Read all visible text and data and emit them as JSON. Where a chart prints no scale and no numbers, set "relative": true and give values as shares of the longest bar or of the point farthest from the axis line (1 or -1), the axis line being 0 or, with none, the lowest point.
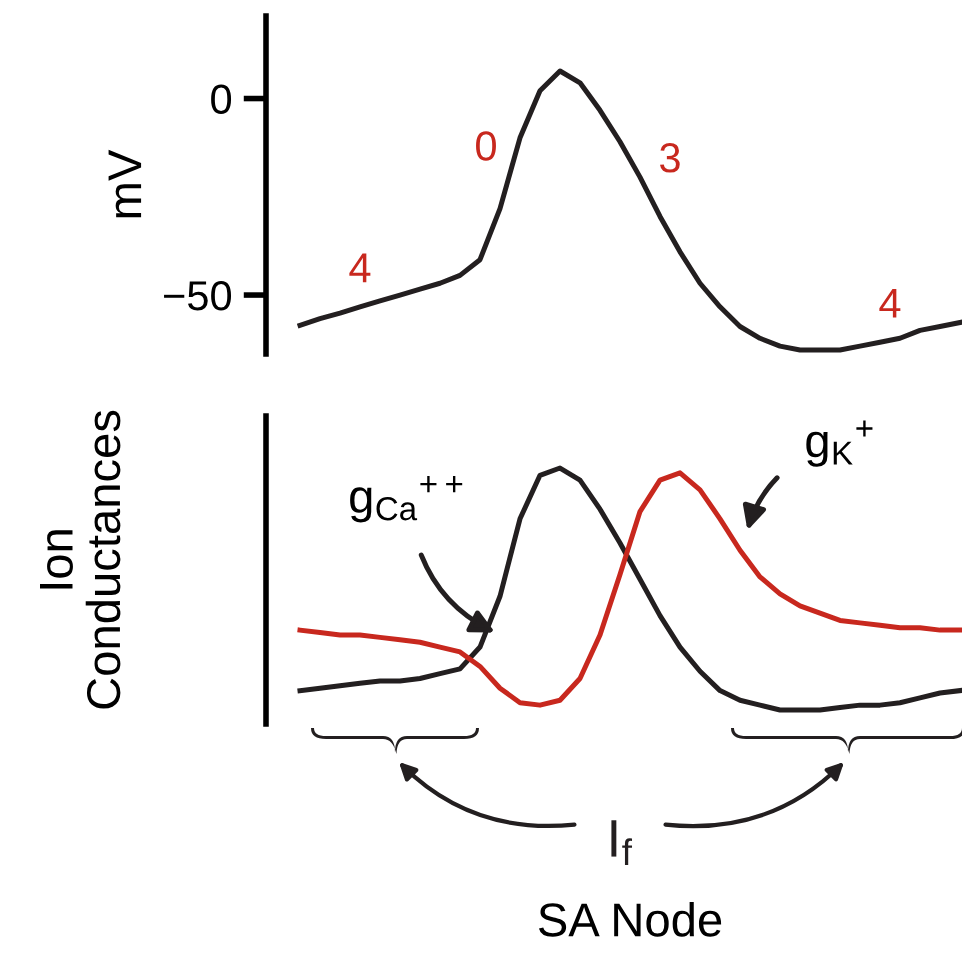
{
  "chart_data": [
    {
      "type": "line",
      "ylabel": "mV",
      "ylim": [
        -65,
        21
      ],
      "yticks": [
        0,
        -50
      ],
      "tick_labels": "y",
      "categories": [
        null,
        null,
        null,
        null,
        null,
        null,
        null,
        null,
        null,
        null,
        null,
        null,
        null,
        null,
        null,
        null,
        null,
        null,
        null,
        null,
        null,
        null,
        null,
        null,
        null,
        null,
        null,
        null,
        null,
        null,
        null,
        null,
        null,
        null
      ],
      "series": [
        {
          "color": "#231f20",
          "values": [
            -57.7,
            -56,
            -54.6,
            -53,
            -51.5,
            -50,
            -48.5,
            -47,
            -45,
            -41,
            -28,
            -10,
            2,
            7,
            4,
            -3,
            -11,
            -20,
            -30,
            -39,
            -47,
            -53,
            -58,
            -61,
            -63,
            -64,
            -64,
            -64,
            -63,
            -62,
            -61,
            -59,
            -58,
            -57
          ]
        }
      ],
      "annotations": [
        "4",
        "0",
        "3",
        "4"
      ]
    },
    {
      "type": "line",
      "relative": true,
      "ylabel": "Ion\nConductances",
      "xlabel": "SA Node",
      "tick_labels": false,
      "categories": [
        null,
        null,
        null,
        null,
        null,
        null,
        null,
        null,
        null,
        null,
        null,
        null,
        null,
        null,
        null,
        null,
        null,
        null,
        null,
        null,
        null,
        null,
        null,
        null,
        null,
        null,
        null,
        null,
        null,
        null,
        null,
        null,
        null,
        null
      ],
      "series": [
        {
          "name": "g$_{Ca}$$^{++}$",
          "color": "#231f20",
          "values": [
            0.08,
            0.09,
            0.1,
            0.11,
            0.12,
            0.12,
            0.13,
            0.15,
            0.17,
            0.26,
            0.47,
            0.79,
            0.97,
            1.0,
            0.95,
            0.83,
            0.69,
            0.54,
            0.39,
            0.26,
            0.16,
            0.08,
            0.04,
            0.02,
            0,
            0,
            0,
            0.01,
            0.02,
            0.02,
            0.03,
            0.05,
            0.07,
            0.08
          ]
        },
        {
          "name": "g$_{K}$$^{+}$",
          "color": "#c8281e",
          "values": [
            0.33,
            0.32,
            0.31,
            0.31,
            0.3,
            0.29,
            0.28,
            0.26,
            0.24,
            0.18,
            0.09,
            0.03,
            0.02,
            0.04,
            0.13,
            0.31,
            0.56,
            0.82,
            0.95,
            0.98,
            0.91,
            0.79,
            0.66,
            0.55,
            0.48,
            0.43,
            0.4,
            0.37,
            0.36,
            0.35,
            0.34,
            0.34,
            0.33,
            0.33
          ]
        }
      ],
      "annotations": [
        "I$_{f}$"
      ]
    }
  ]
}
